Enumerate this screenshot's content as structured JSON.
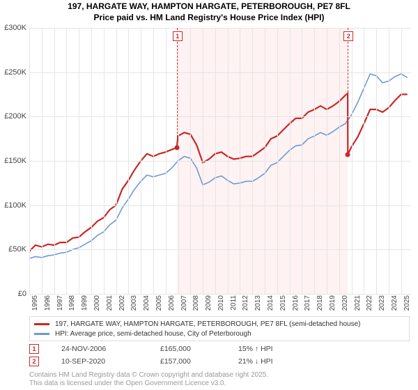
{
  "title": {
    "line1": "197, HARGATE WAY, HAMPTON HARGATE, PETERBOROUGH, PE7 8FL",
    "line2": "Price paid vs. HM Land Registry's House Price Index (HPI)"
  },
  "chart": {
    "type": "line",
    "background_color": "#ffffff",
    "band_color": "#fef2f2",
    "grid_color": "#e5e5e5",
    "ylim": [
      0,
      300000
    ],
    "ytick_step": 50000,
    "y_ticks": [
      0,
      50000,
      100000,
      150000,
      200000,
      250000,
      300000
    ],
    "y_tick_labels": [
      "£0",
      "£50K",
      "£100K",
      "£150K",
      "£200K",
      "£250K",
      "£300K"
    ],
    "x_years": [
      1995,
      1996,
      1997,
      1998,
      1999,
      2000,
      2001,
      2002,
      2003,
      2004,
      2005,
      2006,
      2007,
      2008,
      2009,
      2010,
      2011,
      2012,
      2013,
      2014,
      2015,
      2016,
      2017,
      2018,
      2019,
      2020,
      2021,
      2022,
      2023,
      2024,
      2025
    ],
    "xlim": [
      1995,
      2025.8
    ],
    "label_fontsize": 11,
    "line_width_red": 2.2,
    "line_width_blue": 1.6,
    "series": {
      "price_paid": {
        "color": "#c62828",
        "label": "197, HARGATE WAY, HAMPTON HARGATE, PETERBOROUGH, PE7 8FL (semi-detached house)",
        "points": [
          [
            1995.0,
            48000
          ],
          [
            1995.5,
            55000
          ],
          [
            1996.0,
            53000
          ],
          [
            1996.5,
            56000
          ],
          [
            1997.0,
            55000
          ],
          [
            1997.5,
            58000
          ],
          [
            1998.0,
            58000
          ],
          [
            1998.5,
            63000
          ],
          [
            1999.0,
            64000
          ],
          [
            1999.5,
            70000
          ],
          [
            2000.0,
            75000
          ],
          [
            2000.5,
            82000
          ],
          [
            2001.0,
            86000
          ],
          [
            2001.5,
            95000
          ],
          [
            2002.0,
            100000
          ],
          [
            2002.5,
            118000
          ],
          [
            2003.0,
            128000
          ],
          [
            2003.5,
            140000
          ],
          [
            2004.0,
            150000
          ],
          [
            2004.5,
            158000
          ],
          [
            2005.0,
            155000
          ],
          [
            2005.5,
            158000
          ],
          [
            2006.0,
            160000
          ],
          [
            2006.9,
            165000
          ],
          [
            2007.0,
            178000
          ],
          [
            2007.5,
            182000
          ],
          [
            2008.0,
            180000
          ],
          [
            2008.5,
            168000
          ],
          [
            2009.0,
            148000
          ],
          [
            2009.5,
            152000
          ],
          [
            2010.0,
            158000
          ],
          [
            2010.5,
            160000
          ],
          [
            2011.0,
            155000
          ],
          [
            2011.5,
            152000
          ],
          [
            2012.0,
            153000
          ],
          [
            2012.5,
            155000
          ],
          [
            2013.0,
            155000
          ],
          [
            2013.5,
            160000
          ],
          [
            2014.0,
            165000
          ],
          [
            2014.5,
            175000
          ],
          [
            2015.0,
            178000
          ],
          [
            2015.5,
            185000
          ],
          [
            2016.0,
            192000
          ],
          [
            2016.5,
            198000
          ],
          [
            2017.0,
            198000
          ],
          [
            2017.5,
            205000
          ],
          [
            2018.0,
            208000
          ],
          [
            2018.5,
            212000
          ],
          [
            2019.0,
            208000
          ],
          [
            2019.5,
            212000
          ],
          [
            2020.0,
            217000
          ],
          [
            2020.5,
            224000
          ],
          [
            2020.69,
            226000
          ],
          [
            2020.7,
            157000
          ],
          [
            2021.0,
            166000
          ],
          [
            2021.5,
            177000
          ],
          [
            2022.0,
            192000
          ],
          [
            2022.5,
            208000
          ],
          [
            2023.0,
            208000
          ],
          [
            2023.5,
            205000
          ],
          [
            2024.0,
            210000
          ],
          [
            2024.5,
            218000
          ],
          [
            2025.0,
            225000
          ],
          [
            2025.5,
            225000
          ]
        ]
      },
      "hpi": {
        "color": "#6b9bd1",
        "label": "HPI: Average price, semi-detached house, City of Peterborough",
        "points": [
          [
            1995.0,
            40000
          ],
          [
            1995.5,
            42000
          ],
          [
            1996.0,
            41000
          ],
          [
            1996.5,
            43000
          ],
          [
            1997.0,
            44000
          ],
          [
            1997.5,
            46000
          ],
          [
            1998.0,
            47000
          ],
          [
            1998.5,
            50000
          ],
          [
            1999.0,
            52000
          ],
          [
            1999.5,
            56000
          ],
          [
            2000.0,
            60000
          ],
          [
            2000.5,
            66000
          ],
          [
            2001.0,
            70000
          ],
          [
            2001.5,
            78000
          ],
          [
            2002.0,
            83000
          ],
          [
            2002.5,
            97000
          ],
          [
            2003.0,
            107000
          ],
          [
            2003.5,
            118000
          ],
          [
            2004.0,
            127000
          ],
          [
            2004.5,
            134000
          ],
          [
            2005.0,
            132000
          ],
          [
            2005.5,
            134000
          ],
          [
            2006.0,
            136000
          ],
          [
            2006.5,
            142000
          ],
          [
            2007.0,
            150000
          ],
          [
            2007.5,
            155000
          ],
          [
            2008.0,
            153000
          ],
          [
            2008.5,
            142000
          ],
          [
            2009.0,
            123000
          ],
          [
            2009.5,
            126000
          ],
          [
            2010.0,
            131000
          ],
          [
            2010.5,
            133000
          ],
          [
            2011.0,
            128000
          ],
          [
            2011.5,
            124000
          ],
          [
            2012.0,
            125000
          ],
          [
            2012.5,
            127000
          ],
          [
            2013.0,
            127000
          ],
          [
            2013.5,
            131000
          ],
          [
            2014.0,
            136000
          ],
          [
            2014.5,
            145000
          ],
          [
            2015.0,
            148000
          ],
          [
            2015.5,
            155000
          ],
          [
            2016.0,
            162000
          ],
          [
            2016.5,
            167000
          ],
          [
            2017.0,
            168000
          ],
          [
            2017.5,
            175000
          ],
          [
            2018.0,
            178000
          ],
          [
            2018.5,
            182000
          ],
          [
            2019.0,
            179000
          ],
          [
            2019.5,
            183000
          ],
          [
            2020.0,
            188000
          ],
          [
            2020.5,
            192000
          ],
          [
            2021.0,
            202000
          ],
          [
            2021.5,
            216000
          ],
          [
            2022.0,
            232000
          ],
          [
            2022.5,
            248000
          ],
          [
            2023.0,
            246000
          ],
          [
            2023.5,
            238000
          ],
          [
            2024.0,
            240000
          ],
          [
            2024.5,
            245000
          ],
          [
            2025.0,
            248000
          ],
          [
            2025.5,
            244000
          ]
        ]
      }
    },
    "bands": [
      {
        "start": 2006.9,
        "end": 2020.7
      }
    ],
    "markers": [
      {
        "n": "1",
        "year": 2006.9,
        "price": 165000
      },
      {
        "n": "2",
        "year": 2020.7,
        "price": 157000
      }
    ]
  },
  "sales": [
    {
      "n": "1",
      "date": "24-NOV-2006",
      "price": "£165,000",
      "delta": "15% ↑ HPI"
    },
    {
      "n": "2",
      "date": "10-SEP-2020",
      "price": "£157,000",
      "delta": "21% ↓ HPI"
    }
  ],
  "attribution": {
    "line1": "Contains HM Land Registry data © Crown copyright and database right 2025.",
    "line2": "This data is licensed under the Open Government Licence v3.0."
  }
}
